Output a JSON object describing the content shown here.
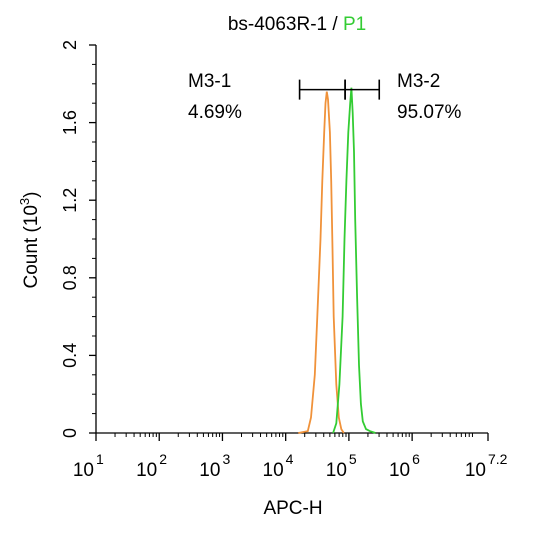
{
  "chart_data": {
    "type": "line",
    "title_prefix": "bs-4063R-1 / ",
    "title_highlight": "P1",
    "xlabel": "APC-H",
    "ylabel": "Count  (10",
    "ylabel_exp": "3",
    "ylabel_suffix": ")",
    "x_scale": "log",
    "xlim": [
      1,
      7.2
    ],
    "ylim": [
      0,
      2
    ],
    "x_ticks": [
      {
        "base": "10",
        "exp": "1",
        "value": 1
      },
      {
        "base": "10",
        "exp": "2",
        "value": 2
      },
      {
        "base": "10",
        "exp": "3",
        "value": 3
      },
      {
        "base": "10",
        "exp": "4",
        "value": 4
      },
      {
        "base": "10",
        "exp": "5",
        "value": 5
      },
      {
        "base": "10",
        "exp": "6",
        "value": 6
      },
      {
        "base": "10",
        "exp": "7.2",
        "value": 7.2
      }
    ],
    "y_ticks": [
      "0",
      "0.4",
      "0.8",
      "1.2",
      "1.6",
      "2"
    ],
    "y_tick_values": [
      0,
      0.4,
      0.8,
      1.2,
      1.6,
      2
    ],
    "series": [
      {
        "color": "#f0923a",
        "x": [
          4.2,
          4.35,
          4.4,
          4.46,
          4.5,
          4.55,
          4.58,
          4.61,
          4.63,
          4.65,
          4.67,
          4.7,
          4.72,
          4.74,
          4.76,
          4.8,
          4.84,
          4.88,
          4.92
        ],
        "y": [
          0,
          0.01,
          0.08,
          0.3,
          0.6,
          1.0,
          1.3,
          1.55,
          1.7,
          1.76,
          1.72,
          1.55,
          1.3,
          0.95,
          0.6,
          0.25,
          0.08,
          0.02,
          0
        ]
      },
      {
        "color": "#33cc33",
        "x": [
          4.75,
          4.8,
          4.85,
          4.9,
          4.93,
          4.96,
          4.99,
          5.02,
          5.04,
          5.06,
          5.08,
          5.1,
          5.13,
          5.16,
          5.19,
          5.22,
          5.27,
          5.33,
          5.42
        ],
        "y": [
          0,
          0.05,
          0.25,
          0.6,
          1.0,
          1.3,
          1.55,
          1.7,
          1.78,
          1.65,
          1.45,
          1.1,
          0.7,
          0.35,
          0.15,
          0.06,
          0.02,
          0.01,
          0
        ]
      }
    ],
    "gates": [
      {
        "name": "M3-1",
        "percent": "4.69%",
        "x_start": 4.22,
        "x_end": 4.94
      },
      {
        "name": "M3-2",
        "percent": "95.07%",
        "x_start": 4.94,
        "x_end": 5.48
      }
    ],
    "gate_y": 1.77,
    "colors": {
      "axis": "#000000",
      "title_highlight": "#33cc33"
    }
  }
}
